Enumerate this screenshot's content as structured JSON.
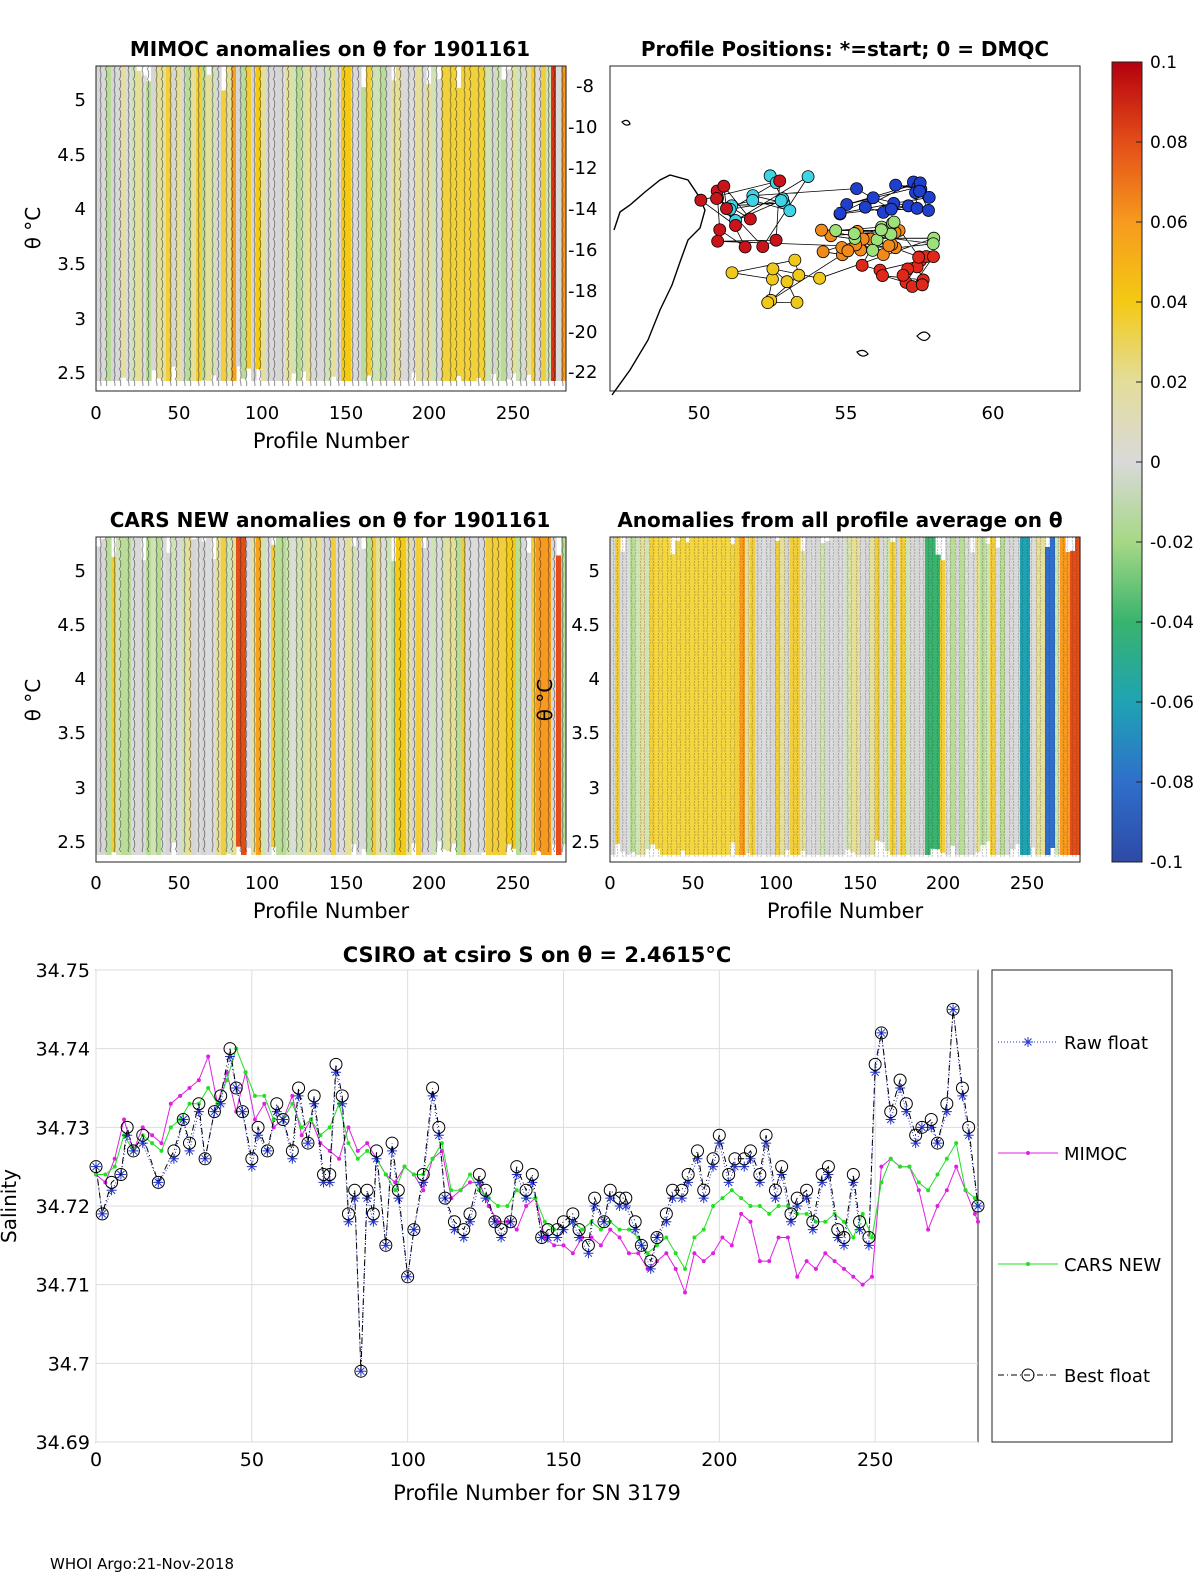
{
  "footer": "WHOI Argo:21-Nov-2018",
  "colorbar": {
    "min": -0.1,
    "max": 0.1,
    "ticks": [
      "0.1",
      "0.08",
      "0.06",
      "0.04",
      "0.02",
      "0",
      "-0.02",
      "-0.04",
      "-0.06",
      "-0.08",
      "-0.1"
    ],
    "values": [
      0.1,
      0.08,
      0.06,
      0.04,
      0.02,
      0,
      -0.02,
      -0.04,
      -0.06,
      -0.08,
      -0.1
    ],
    "colors": [
      "#2a4aa8",
      "#2f7fd0",
      "#19a7b0",
      "#3cb878",
      "#9bd67a",
      "#d6dcd6",
      "#d9d9d9",
      "#e6df9a",
      "#f4cc1a",
      "#f8a31e",
      "#f2701b",
      "#e13415",
      "#b5000f"
    ]
  },
  "panels": {
    "mimoc": {
      "title": "MIMOC anomalies on θ  for 1901161",
      "ylabel": "θ °C",
      "xlabel": "Profile Number",
      "xticks": [
        "0",
        "50",
        "100",
        "150",
        "200",
        "250"
      ],
      "yticks": [
        "5",
        "4.5",
        "4",
        "3.5",
        "3",
        "2.5"
      ]
    },
    "positions": {
      "title": "Profile Positions: *=start; 0 = DMQC",
      "xticks": [
        "50",
        "55",
        "60"
      ],
      "yticks": [
        "-8",
        "-10",
        "-12",
        "-14",
        "-16",
        "-18",
        "-20",
        "-22"
      ]
    },
    "cars": {
      "title": "CARS NEW anomalies on θ for 1901161",
      "ylabel": "θ °C",
      "xlabel": "Profile Number",
      "xticks": [
        "0",
        "50",
        "100",
        "150",
        "200",
        "250"
      ],
      "yticks": [
        "5",
        "4.5",
        "4",
        "3.5",
        "3",
        "2.5"
      ]
    },
    "allavg": {
      "title": "Anomalies from all profile average on θ",
      "ylabel": "θ °C",
      "xlabel": "Profile Number",
      "xticks": [
        "0",
        "50",
        "100",
        "150",
        "200",
        "250"
      ],
      "yticks": [
        "5",
        "4.5",
        "4",
        "3.5",
        "3",
        "2.5"
      ]
    }
  },
  "chart_data": {
    "type": "line",
    "title": "CSIRO at csiro S on θ = 2.4615°C",
    "xlabel": "Profile Number for SN 3179",
    "ylabel": "Salinity",
    "xlim": [
      0,
      283
    ],
    "ylim": [
      34.69,
      34.75
    ],
    "xticks": [
      0,
      50,
      100,
      150,
      200,
      250
    ],
    "yticks": [
      34.69,
      34.7,
      34.71,
      34.72,
      34.73,
      34.74,
      34.75
    ],
    "xtick_labels": [
      "0",
      "50",
      "100",
      "150",
      "200",
      "250"
    ],
    "ytick_labels": [
      "34.69",
      "34.7",
      "34.71",
      "34.72",
      "34.73",
      "34.74",
      "34.75"
    ],
    "legend": {
      "position": "right",
      "entries": [
        {
          "label": "Raw float",
          "color": "#2233cc"
        },
        {
          "label": "MIMOC",
          "color": "#e020e0"
        },
        {
          "label": "CARS NEW",
          "color": "#22e022"
        },
        {
          "label": "Best float",
          "color": "#000000"
        }
      ]
    },
    "series": [
      {
        "name": "Best float",
        "x": [
          0,
          2,
          5,
          8,
          10,
          12,
          15,
          20,
          25,
          28,
          30,
          33,
          35,
          38,
          40,
          43,
          45,
          47,
          50,
          52,
          55,
          58,
          60,
          63,
          65,
          68,
          70,
          73,
          75,
          77,
          79,
          81,
          83,
          85,
          87,
          89,
          90,
          93,
          95,
          97,
          100,
          102,
          105,
          108,
          110,
          112,
          115,
          118,
          120,
          123,
          125,
          128,
          130,
          133,
          135,
          138,
          140,
          143,
          145,
          148,
          150,
          153,
          155,
          158,
          160,
          163,
          165,
          168,
          170,
          173,
          175,
          178,
          180,
          183,
          185,
          188,
          190,
          193,
          195,
          198,
          200,
          203,
          205,
          208,
          210,
          213,
          215,
          218,
          220,
          223,
          225,
          228,
          230,
          233,
          235,
          238,
          240,
          243,
          245,
          248,
          250,
          252,
          255,
          258,
          260,
          263,
          265,
          268,
          270,
          273,
          275,
          278,
          280,
          283
        ],
        "y": [
          34.725,
          34.719,
          34.723,
          34.724,
          34.73,
          34.727,
          34.729,
          34.723,
          34.727,
          34.731,
          34.728,
          34.733,
          34.726,
          34.732,
          34.734,
          34.74,
          34.735,
          34.732,
          34.726,
          34.73,
          34.727,
          34.733,
          34.731,
          34.727,
          34.735,
          34.728,
          34.734,
          34.724,
          34.724,
          34.738,
          34.734,
          34.719,
          34.722,
          34.699,
          34.722,
          34.719,
          34.727,
          34.715,
          34.728,
          34.722,
          34.711,
          34.717,
          34.724,
          34.735,
          34.73,
          34.721,
          34.718,
          34.717,
          34.719,
          34.724,
          34.722,
          34.718,
          34.717,
          34.718,
          34.725,
          34.722,
          34.724,
          34.716,
          34.717,
          34.717,
          34.718,
          34.719,
          34.717,
          34.715,
          34.721,
          34.718,
          34.722,
          34.721,
          34.721,
          34.718,
          34.715,
          34.713,
          34.716,
          34.719,
          34.722,
          34.722,
          34.724,
          34.727,
          34.722,
          34.726,
          34.729,
          34.724,
          34.726,
          34.726,
          34.727,
          34.724,
          34.729,
          34.722,
          34.725,
          34.719,
          34.721,
          34.722,
          34.718,
          34.724,
          34.725,
          34.717,
          34.716,
          34.724,
          34.718,
          34.716,
          34.738,
          34.742,
          34.732,
          34.736,
          34.733,
          34.729,
          34.73,
          34.731,
          34.728,
          34.733,
          34.745,
          34.735,
          34.73,
          34.72
        ]
      },
      {
        "name": "Raw float",
        "x": [
          0,
          2,
          5,
          8,
          10,
          12,
          15,
          20,
          25,
          28,
          30,
          33,
          35,
          38,
          40,
          43,
          45,
          47,
          50,
          52,
          55,
          58,
          60,
          63,
          65,
          68,
          70,
          73,
          75,
          77,
          79,
          81,
          83,
          85,
          87,
          89,
          90,
          93,
          95,
          97,
          100,
          102,
          105,
          108,
          110,
          112,
          115,
          118,
          120,
          123,
          125,
          128,
          130,
          133,
          135,
          138,
          140,
          143,
          145,
          148,
          150,
          153,
          155,
          158,
          160,
          163,
          165,
          168,
          170,
          173,
          175,
          178,
          180,
          183,
          185,
          188,
          190,
          193,
          195,
          198,
          200,
          203,
          205,
          208,
          210,
          213,
          215,
          218,
          220,
          223,
          225,
          228,
          230,
          233,
          235,
          238,
          240,
          243,
          245,
          248,
          250,
          252,
          255,
          258,
          260,
          263,
          265,
          268,
          270,
          273,
          275,
          278,
          280,
          283
        ],
        "y": [
          34.725,
          34.719,
          34.722,
          34.724,
          34.729,
          34.727,
          34.728,
          34.723,
          34.726,
          34.731,
          34.727,
          34.732,
          34.726,
          34.732,
          34.733,
          34.739,
          34.735,
          34.732,
          34.725,
          34.729,
          34.727,
          34.732,
          34.731,
          34.726,
          34.734,
          34.728,
          34.733,
          34.723,
          34.723,
          34.737,
          34.733,
          34.718,
          34.721,
          34.699,
          34.721,
          34.718,
          34.726,
          34.715,
          34.727,
          34.721,
          34.711,
          34.717,
          34.723,
          34.734,
          34.729,
          34.721,
          34.717,
          34.716,
          34.718,
          34.723,
          34.721,
          34.718,
          34.716,
          34.718,
          34.724,
          34.721,
          34.723,
          34.716,
          34.716,
          34.716,
          34.717,
          34.718,
          34.716,
          34.714,
          34.72,
          34.718,
          34.721,
          34.72,
          34.72,
          34.717,
          34.715,
          34.712,
          34.716,
          34.718,
          34.721,
          34.721,
          34.723,
          34.726,
          34.721,
          34.725,
          34.728,
          34.723,
          34.725,
          34.725,
          34.726,
          34.723,
          34.728,
          34.721,
          34.724,
          34.718,
          34.72,
          34.721,
          34.717,
          34.723,
          34.724,
          34.716,
          34.715,
          34.723,
          34.717,
          34.715,
          34.737,
          34.742,
          34.731,
          34.735,
          34.732,
          34.728,
          34.73,
          34.73,
          34.728,
          34.732,
          34.745,
          34.734,
          34.729,
          34.72
        ]
      },
      {
        "name": "MIMOC",
        "x": [
          0,
          3,
          6,
          9,
          12,
          15,
          18,
          21,
          24,
          27,
          30,
          33,
          36,
          39,
          42,
          45,
          48,
          51,
          54,
          57,
          60,
          63,
          66,
          69,
          72,
          75,
          78,
          81,
          84,
          87,
          90,
          93,
          96,
          99,
          102,
          105,
          108,
          111,
          114,
          117,
          120,
          123,
          126,
          129,
          132,
          135,
          138,
          141,
          144,
          147,
          150,
          153,
          156,
          159,
          162,
          165,
          168,
          171,
          174,
          177,
          180,
          183,
          186,
          189,
          192,
          195,
          198,
          201,
          204,
          207,
          210,
          213,
          216,
          219,
          222,
          225,
          228,
          231,
          234,
          237,
          240,
          243,
          246,
          249,
          252,
          255,
          258,
          261,
          264,
          267,
          270,
          273,
          276,
          279,
          282,
          283
        ],
        "y": [
          34.724,
          34.723,
          34.726,
          34.731,
          34.727,
          34.73,
          34.729,
          34.728,
          34.733,
          34.734,
          34.735,
          34.736,
          34.739,
          34.733,
          34.737,
          34.732,
          34.737,
          34.731,
          34.733,
          34.73,
          34.731,
          34.734,
          34.729,
          34.731,
          34.728,
          34.727,
          34.726,
          34.73,
          34.727,
          34.728,
          34.726,
          34.724,
          34.723,
          34.725,
          34.724,
          34.722,
          34.726,
          34.727,
          34.721,
          34.722,
          34.723,
          34.723,
          34.72,
          34.718,
          34.718,
          34.717,
          34.72,
          34.721,
          34.716,
          34.715,
          34.715,
          34.714,
          34.716,
          34.716,
          34.715,
          34.717,
          34.716,
          34.714,
          34.714,
          34.712,
          34.713,
          34.714,
          34.712,
          34.709,
          34.714,
          34.713,
          34.714,
          34.716,
          34.715,
          34.719,
          34.718,
          34.713,
          34.713,
          34.716,
          34.716,
          34.711,
          34.713,
          34.712,
          34.714,
          34.713,
          34.712,
          34.711,
          34.71,
          34.711,
          34.725,
          34.726,
          34.725,
          34.725,
          34.722,
          34.717,
          34.72,
          34.722,
          34.725,
          34.722,
          34.719,
          34.718
        ]
      },
      {
        "name": "CARS NEW",
        "x": [
          0,
          3,
          6,
          9,
          12,
          15,
          18,
          21,
          24,
          27,
          30,
          33,
          36,
          39,
          42,
          45,
          48,
          51,
          54,
          57,
          60,
          63,
          66,
          69,
          72,
          75,
          78,
          81,
          84,
          87,
          90,
          93,
          96,
          99,
          102,
          105,
          108,
          111,
          114,
          117,
          120,
          123,
          126,
          129,
          132,
          135,
          138,
          141,
          144,
          147,
          150,
          153,
          156,
          159,
          162,
          165,
          168,
          171,
          174,
          177,
          180,
          183,
          186,
          189,
          192,
          195,
          198,
          201,
          204,
          207,
          210,
          213,
          216,
          219,
          222,
          225,
          228,
          231,
          234,
          237,
          240,
          243,
          246,
          249,
          252,
          255,
          258,
          261,
          264,
          267,
          270,
          273,
          276,
          279,
          282,
          283
        ],
        "y": [
          34.724,
          34.724,
          34.725,
          34.729,
          34.727,
          34.729,
          34.728,
          34.727,
          34.73,
          34.731,
          34.733,
          34.733,
          34.735,
          34.733,
          34.736,
          34.74,
          34.737,
          34.734,
          34.734,
          34.731,
          34.731,
          34.733,
          34.73,
          34.731,
          34.729,
          34.73,
          34.733,
          34.728,
          34.726,
          34.727,
          34.726,
          34.724,
          34.722,
          34.725,
          34.724,
          34.724,
          34.726,
          34.728,
          34.722,
          34.722,
          34.724,
          34.722,
          34.721,
          34.72,
          34.72,
          34.722,
          34.721,
          34.721,
          34.718,
          34.717,
          34.717,
          34.718,
          34.717,
          34.718,
          34.717,
          34.718,
          34.717,
          34.717,
          34.716,
          34.714,
          34.715,
          34.716,
          34.714,
          34.712,
          34.716,
          34.717,
          34.72,
          34.721,
          34.722,
          34.721,
          34.72,
          34.72,
          34.719,
          34.72,
          34.72,
          34.719,
          34.719,
          34.718,
          34.718,
          34.719,
          34.718,
          34.716,
          34.719,
          34.716,
          34.723,
          34.726,
          34.725,
          34.725,
          34.723,
          34.722,
          34.724,
          34.726,
          34.728,
          34.722,
          34.721,
          34.72
        ]
      }
    ]
  }
}
